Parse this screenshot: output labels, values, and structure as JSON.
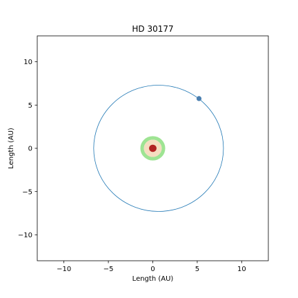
{
  "chart_data": {
    "type": "scatter",
    "title": "HD 30177",
    "xlabel": "Length (AU)",
    "ylabel": "Length (AU)",
    "xlim": [
      -13,
      13
    ],
    "ylim": [
      -13,
      13
    ],
    "x_ticks": [
      -10,
      -5,
      0,
      5,
      10
    ],
    "y_ticks": [
      -10,
      -5,
      0,
      5,
      10
    ],
    "x_tick_labels": [
      "−10",
      "−5",
      "0",
      "5",
      "10"
    ],
    "y_tick_labels": [
      "−10",
      "−5",
      "0",
      "5",
      "10"
    ],
    "grid": false,
    "orbit": {
      "center": [
        0.65,
        0.0
      ],
      "semi_axis_x": 7.3,
      "semi_axis_y": 7.3,
      "color": "#1f77b4"
    },
    "planet": {
      "x": 5.2,
      "y": 5.75,
      "color": "#4a7fb0"
    },
    "habitable_zone": {
      "center": [
        0,
        0
      ],
      "inner_radius": 1.0,
      "outer_radius": 1.4,
      "color": "#9ee493"
    },
    "inner_zone": {
      "center": [
        0,
        0
      ],
      "radius": 1.0,
      "color": "#f5ddc0"
    },
    "star": {
      "x": 0,
      "y": 0,
      "radius": 0.42,
      "color": "#b22222"
    }
  }
}
